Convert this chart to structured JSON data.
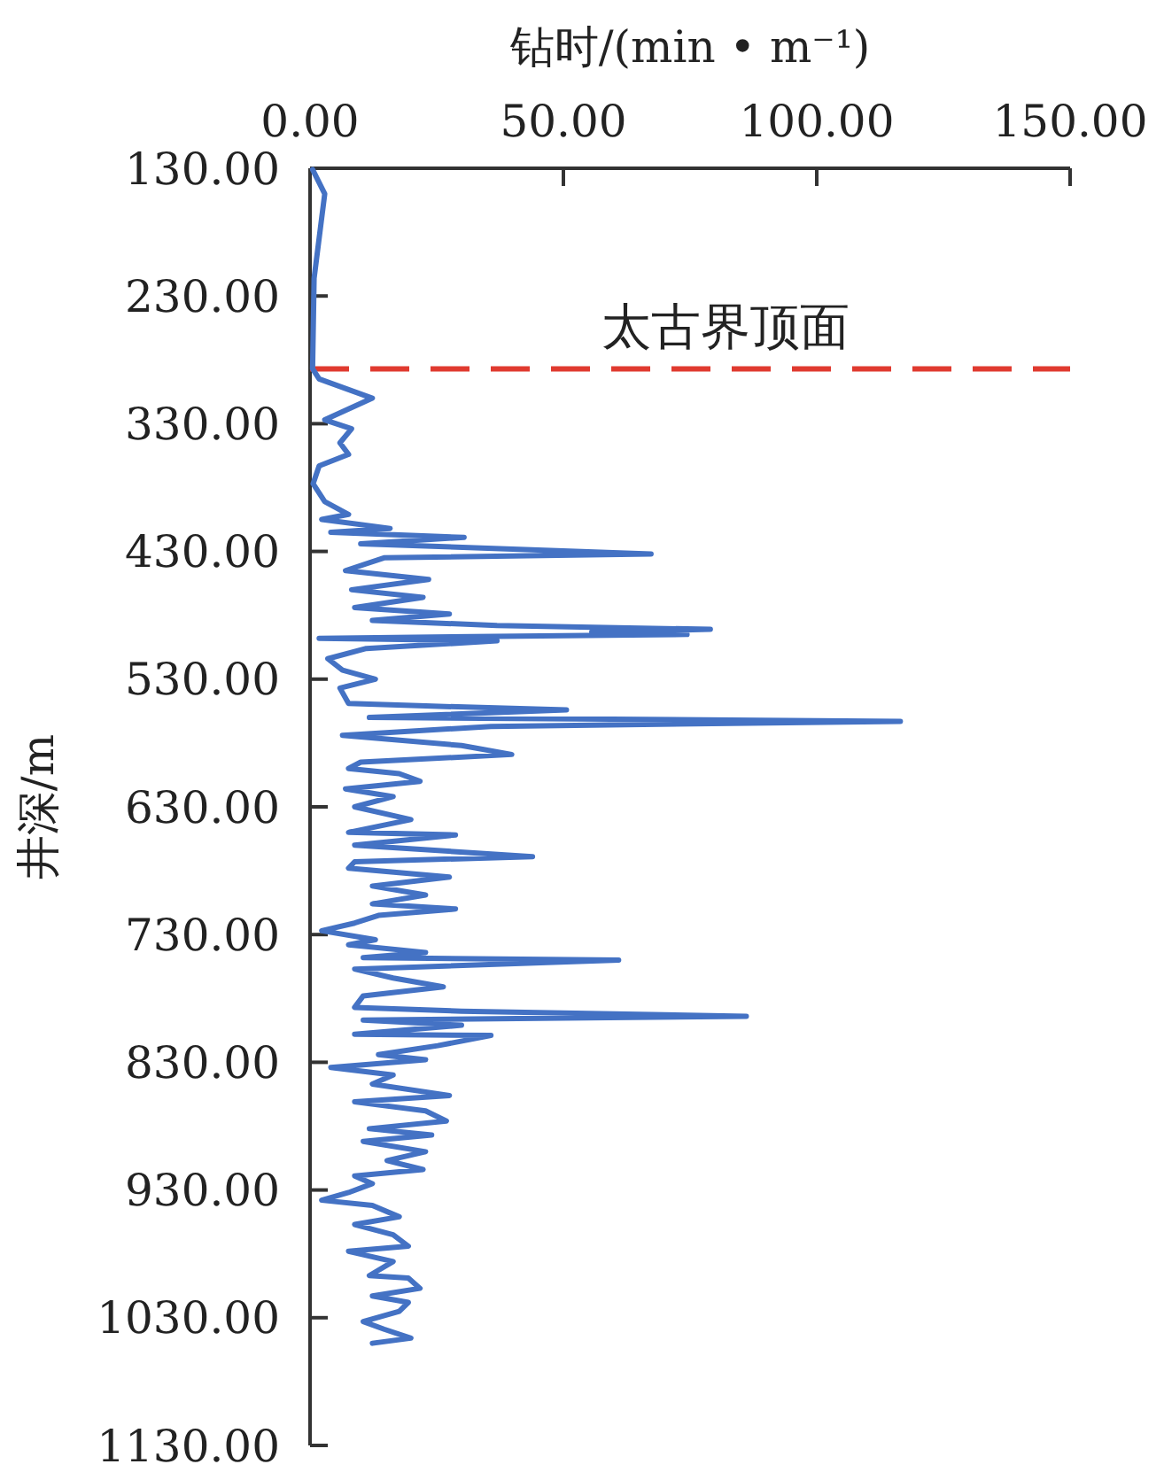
{
  "chart_data": {
    "type": "line",
    "xlabel": "钻时/(min • m⁻¹)",
    "ylabel": "井深/m",
    "xlim": [
      0,
      150
    ],
    "ylim": [
      1130,
      130
    ],
    "xticks": [
      {
        "value": 0,
        "label": "0.00"
      },
      {
        "value": 50,
        "label": "50.00"
      },
      {
        "value": 100,
        "label": "100.00"
      },
      {
        "value": 150,
        "label": "150.00"
      }
    ],
    "yticks": [
      {
        "value": 130,
        "label": "130.00"
      },
      {
        "value": 230,
        "label": "230.00"
      },
      {
        "value": 330,
        "label": "330.00"
      },
      {
        "value": 430,
        "label": "430.00"
      },
      {
        "value": 530,
        "label": "530.00"
      },
      {
        "value": 630,
        "label": "630.00"
      },
      {
        "value": 730,
        "label": "730.00"
      },
      {
        "value": 830,
        "label": "830.00"
      },
      {
        "value": 930,
        "label": "930.00"
      },
      {
        "value": 1030,
        "label": "1030.00"
      },
      {
        "value": 1130,
        "label": "1130.00"
      }
    ],
    "grid": false,
    "marker": "none",
    "line_style": "solid",
    "ref_lines": [
      {
        "axis": "y",
        "value": 287,
        "label": "太古界顶面",
        "color": "#e03a2f",
        "line_style": "dashed"
      }
    ],
    "series": [
      {
        "color": "#4472c4",
        "x": [
          0.5,
          2.9,
          0.8,
          0.5,
          1.8,
          12.3,
          2.9,
          8.2,
          5.9,
          7.6,
          1.8,
          0.6,
          2.9,
          7.6,
          2.3,
          15.8,
          4.1,
          30.4,
          10,
          67.3,
          14.6,
          7,
          23.4,
          8.2,
          22.3,
          8.8,
          27.5,
          12.3,
          36.9,
          79,
          55.6,
          74.4,
          1.8,
          36.9,
          11.1,
          3.5,
          6.4,
          12.9,
          5.9,
          7.6,
          22.8,
          50.6,
          11.7,
          116.5,
          35.7,
          6.4,
          29.9,
          39.8,
          10,
          7.6,
          17.6,
          21.7,
          7,
          16.4,
          8.8,
          19.9,
          7.6,
          28.7,
          8.8,
          43.9,
          8.8,
          7.6,
          27.5,
          12.3,
          22.8,
          12.3,
          28.7,
          13.5,
          8.8,
          2.3,
          12.9,
          7.6,
          22.8,
          10.5,
          60.9,
          8.8,
          16.4,
          26.3,
          10.5,
          8.8,
          29.9,
          86.1,
          10.5,
          29.9,
          8.8,
          35.7,
          25.2,
          13.5,
          22.8,
          4.1,
          16.4,
          12.3,
          27.5,
          8.8,
          22.8,
          26.9,
          11.7,
          24,
          10.5,
          22.8,
          15.2,
          22.3,
          8.8,
          12.3,
          7.6,
          2.3,
          12.3,
          17.6,
          8.8,
          16.4,
          19.4,
          7.6,
          16.4,
          11.7,
          19.4,
          21.7,
          12.3,
          19.4,
          17.6,
          10.5,
          14.6,
          19.9,
          12.3
        ],
        "values": [
          131,
          150,
          216,
          287,
          295,
          310,
          327,
          334,
          345,
          354,
          363,
          377,
          391,
          401,
          405,
          412,
          415,
          419,
          424,
          432,
          435,
          445,
          452,
          460,
          466,
          474,
          479,
          484,
          488,
          491,
          493,
          495,
          498,
          500,
          506,
          514,
          523,
          530,
          537,
          549,
          551,
          554,
          560,
          563,
          567,
          574,
          582,
          589,
          595,
          600,
          604,
          610,
          616,
          622,
          630,
          640,
          650,
          652,
          660,
          669,
          673,
          678,
          685,
          692,
          699,
          706,
          710,
          715,
          721,
          727,
          734,
          738,
          744,
          748,
          750,
          757,
          764,
          771,
          778,
          787,
          790,
          794,
          797,
          801,
          808,
          809,
          817,
          824,
          828,
          834,
          840,
          847,
          856,
          861,
          868,
          876,
          882,
          887,
          892,
          900,
          907,
          914,
          919,
          925,
          932,
          938,
          942,
          951,
          957,
          965,
          974,
          978,
          986,
          997,
          999,
          1007,
          1013,
          1018,
          1025,
          1033,
          1039,
          1046,
          1050
        ]
      }
    ]
  }
}
